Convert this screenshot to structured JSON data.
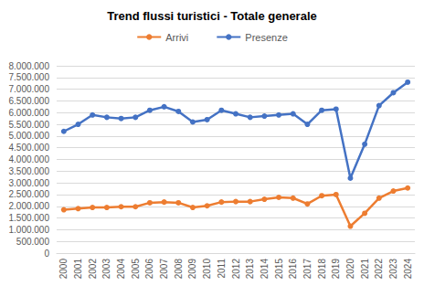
{
  "chart_data": {
    "type": "line",
    "title": "Trend flussi turistici - Totale generale",
    "categories": [
      "2000",
      "2001",
      "2002",
      "2003",
      "2004",
      "2005",
      "2006",
      "2007",
      "2008",
      "2009",
      "2010",
      "2011",
      "2012",
      "2013",
      "2014",
      "2015",
      "2016",
      "2017",
      "2018",
      "2019",
      "2020",
      "2021",
      "2022",
      "2023",
      "2024"
    ],
    "series": [
      {
        "name": "Arrivi",
        "color": "#ed7d31",
        "marker": "circle",
        "values": [
          1850000,
          1900000,
          1950000,
          1950000,
          1980000,
          1980000,
          2150000,
          2180000,
          2150000,
          1950000,
          2020000,
          2180000,
          2200000,
          2200000,
          2300000,
          2380000,
          2350000,
          2100000,
          2450000,
          2500000,
          1150000,
          1700000,
          2350000,
          2650000,
          2780000
        ]
      },
      {
        "name": "Presenze",
        "color": "#4472c4",
        "marker": "circle",
        "values": [
          5200000,
          5500000,
          5900000,
          5800000,
          5750000,
          5800000,
          6100000,
          6250000,
          6050000,
          5600000,
          5700000,
          6100000,
          5950000,
          5800000,
          5850000,
          5900000,
          5950000,
          5500000,
          6100000,
          6150000,
          3200000,
          4650000,
          6300000,
          6850000,
          7300000
        ]
      }
    ],
    "ylim": [
      0,
      8000000
    ],
    "yticks": [
      0,
      {
        "value": 500000,
        "label": "500.000"
      },
      {
        "value": 1000000,
        "label": "1.000.000"
      },
      {
        "value": 1500000,
        "label": "1.500.000"
      },
      {
        "value": 2000000,
        "label": "2.000.000"
      },
      {
        "value": 2500000,
        "label": "2.500.000"
      },
      {
        "value": 3000000,
        "label": "3.000.000"
      },
      {
        "value": 3500000,
        "label": "3.500.000"
      },
      {
        "value": 4000000,
        "label": "4.000.000"
      },
      {
        "value": 4500000,
        "label": "4.500.000"
      },
      {
        "value": 5000000,
        "label": "5.000.000"
      },
      {
        "value": 5500000,
        "label": "5.500.000"
      },
      {
        "value": 6000000,
        "label": "6.000.000"
      },
      {
        "value": 6500000,
        "label": "6.500.000"
      },
      {
        "value": 7000000,
        "label": "7.000.000"
      },
      {
        "value": 7500000,
        "label": "7.500.000"
      },
      {
        "value": 8000000,
        "label": "8.000.000"
      }
    ],
    "grid": true,
    "legend": "top"
  }
}
